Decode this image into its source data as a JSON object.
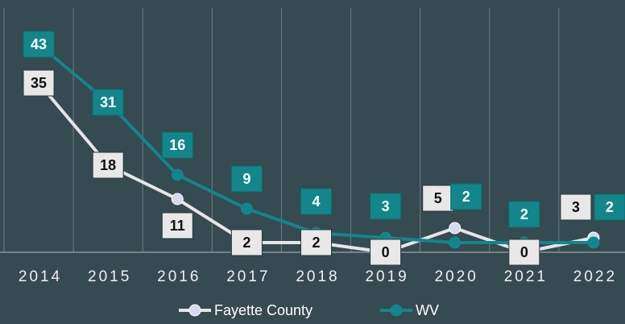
{
  "chart_data": {
    "type": "line",
    "categories": [
      "2014",
      "2015",
      "2016",
      "2017",
      "2018",
      "2019",
      "2020",
      "2021",
      "2022"
    ],
    "series": [
      {
        "name": "Fayette County",
        "color": "#e6e6e6",
        "marker_color": "#d6daf0",
        "values": [
          35,
          18,
          11,
          2,
          2,
          0,
          5,
          0,
          3
        ]
      },
      {
        "name": "WV",
        "color": "#12868b",
        "marker_color": "#12868b",
        "values": [
          43,
          31,
          16,
          9,
          4,
          3,
          2,
          2,
          2
        ]
      }
    ],
    "ylim": [
      0,
      45
    ],
    "grid": true
  }
}
